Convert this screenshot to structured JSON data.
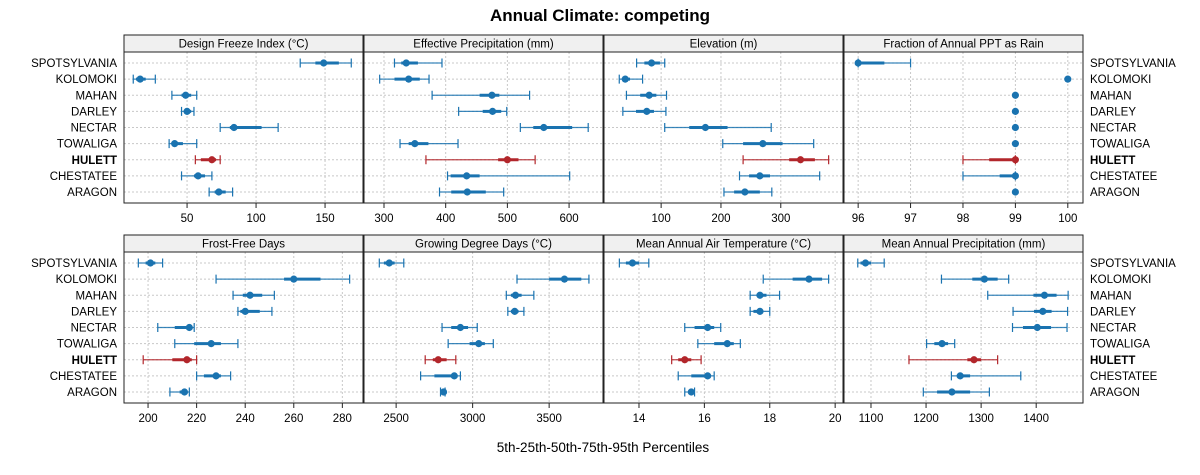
{
  "chart_data": {
    "type": "dot-interval",
    "title": "Annual Climate: competing",
    "xlabel": "5th-25th-50th-75th-95th Percentiles",
    "ylabel": "",
    "grid": true,
    "highlight_site": "HULETT",
    "colors": {
      "default": "#1a73b0",
      "highlight": "#b2262b"
    },
    "sites": [
      "SPOTSYLVANIA",
      "KOLOMOKI",
      "MAHAN",
      "DARLEY",
      "NECTAR",
      "TOWALIGA",
      "HULETT",
      "CHESTATEE",
      "ARAGON"
    ],
    "panels": [
      {
        "name": "Design Freeze Index (°C)",
        "xlim": [
          4.3,
          177.5
        ],
        "ticks": [
          50,
          100,
          150
        ],
        "data": [
          [
            132,
            143,
            149,
            160,
            169
          ],
          [
            11,
            13,
            16,
            20,
            27
          ],
          [
            39,
            46,
            49,
            53,
            57
          ],
          [
            46,
            48,
            50,
            53,
            55
          ],
          [
            74,
            81,
            84,
            104,
            116
          ],
          [
            37,
            40,
            41,
            47,
            57
          ],
          [
            56,
            60,
            68,
            71,
            74
          ],
          [
            46,
            55,
            58,
            63,
            68
          ],
          [
            66,
            70,
            73,
            78,
            83
          ]
        ]
      },
      {
        "name": "Effective Precipitation (mm)",
        "xlim": [
          267.6,
          655
        ],
        "ticks": [
          300,
          400,
          500,
          600
        ],
        "data": [
          [
            317,
            328,
            336,
            355,
            394
          ],
          [
            293,
            317,
            340,
            358,
            373
          ],
          [
            378,
            455,
            475,
            487,
            536
          ],
          [
            421,
            460,
            476,
            490,
            499
          ],
          [
            521,
            542,
            559,
            605,
            631
          ],
          [
            326,
            340,
            350,
            372,
            420
          ],
          [
            368,
            485,
            500,
            518,
            545
          ],
          [
            403,
            408,
            434,
            455,
            601
          ],
          [
            390,
            409,
            435,
            465,
            494
          ]
        ]
      },
      {
        "name": "Elevation (m)",
        "xlim": [
          4.5,
          404
        ],
        "ticks": [
          100,
          200,
          300
        ],
        "data": [
          [
            59,
            72,
            84,
            98,
            106
          ],
          [
            30,
            36,
            40,
            48,
            69
          ],
          [
            42,
            65,
            80,
            92,
            109
          ],
          [
            36,
            58,
            76,
            88,
            108
          ],
          [
            106,
            147,
            174,
            211,
            284
          ],
          [
            203,
            237,
            270,
            303,
            355
          ],
          [
            237,
            314,
            333,
            357,
            380
          ],
          [
            231,
            247,
            265,
            282,
            365
          ],
          [
            205,
            222,
            240,
            265,
            285
          ]
        ]
      },
      {
        "name": "Fraction of Annual PPT as Rain",
        "xlim": [
          95.73,
          100.29
        ],
        "ticks": [
          96,
          97,
          98,
          99,
          100
        ],
        "data": [
          [
            96,
            96,
            96,
            96.5,
            97
          ],
          [
            100,
            100,
            100,
            100,
            100
          ],
          [
            99,
            99,
            99,
            99,
            99
          ],
          [
            99,
            99,
            99,
            99,
            99
          ],
          [
            99,
            99,
            99,
            99,
            99
          ],
          [
            99,
            99,
            99,
            99,
            99
          ],
          [
            98,
            98.5,
            99,
            99,
            99
          ],
          [
            98,
            98.7,
            99,
            99,
            99
          ],
          [
            99,
            99,
            99,
            99,
            99
          ]
        ]
      },
      {
        "name": "Frost-Free Days",
        "xlim": [
          190.1,
          288.5
        ],
        "ticks": [
          200,
          220,
          240,
          260,
          280
        ],
        "data": [
          [
            196,
            199,
            201,
            203,
            206
          ],
          [
            228,
            256,
            260,
            271,
            283
          ],
          [
            235,
            239,
            242,
            247,
            252
          ],
          [
            237,
            238,
            240,
            246,
            251
          ],
          [
            204,
            211,
            217,
            218,
            219
          ],
          [
            211,
            219,
            226,
            230,
            237
          ],
          [
            198,
            210,
            216,
            218,
            220
          ],
          [
            220,
            223,
            228,
            230,
            234
          ],
          [
            209,
            213,
            215,
            216,
            217
          ]
        ]
      },
      {
        "name": "Growing Degree Days (°C)",
        "xlim": [
          2290,
          3852
        ],
        "ticks": [
          2500,
          3000,
          3500
        ],
        "data": [
          [
            2390,
            2420,
            2455,
            2490,
            2550
          ],
          [
            3290,
            3500,
            3600,
            3710,
            3760
          ],
          [
            3220,
            3250,
            3280,
            3320,
            3400
          ],
          [
            3230,
            3250,
            3275,
            3300,
            3335
          ],
          [
            2800,
            2860,
            2920,
            2970,
            3030
          ],
          [
            2840,
            2980,
            3040,
            3080,
            3135
          ],
          [
            2690,
            2740,
            2775,
            2830,
            2890
          ],
          [
            2660,
            2750,
            2880,
            2900,
            2920
          ],
          [
            2790,
            2800,
            2810,
            2815,
            2820
          ]
        ]
      },
      {
        "name": "Mean Annual Air Temperature (°C)",
        "xlim": [
          12.93,
          20.24
        ],
        "ticks": [
          14,
          16,
          18,
          20
        ],
        "data": [
          [
            13.4,
            13.6,
            13.8,
            14.0,
            14.3
          ],
          [
            17.8,
            18.7,
            19.2,
            19.6,
            19.8
          ],
          [
            17.4,
            17.6,
            17.7,
            17.9,
            18.3
          ],
          [
            17.4,
            17.5,
            17.7,
            17.8,
            18.0
          ],
          [
            15.4,
            15.7,
            16.1,
            16.3,
            16.5
          ],
          [
            15.8,
            16.3,
            16.7,
            16.9,
            17.1
          ],
          [
            15.0,
            15.2,
            15.4,
            15.6,
            15.9
          ],
          [
            15.2,
            15.6,
            16.1,
            16.2,
            16.3
          ],
          [
            15.4,
            15.5,
            15.6,
            15.6,
            15.7
          ]
        ]
      },
      {
        "name": "Mean Annual Precipitation (mm)",
        "xlim": [
          1051,
          1485
        ],
        "ticks": [
          1100,
          1200,
          1300,
          1400
        ],
        "data": [
          [
            1076,
            1081,
            1090,
            1100,
            1124
          ],
          [
            1228,
            1284,
            1306,
            1330,
            1350
          ],
          [
            1312,
            1395,
            1415,
            1437,
            1458
          ],
          [
            1358,
            1396,
            1412,
            1428,
            1457
          ],
          [
            1357,
            1376,
            1402,
            1427,
            1456
          ],
          [
            1201,
            1215,
            1229,
            1240,
            1252
          ],
          [
            1169,
            1275,
            1287,
            1300,
            1330
          ],
          [
            1246,
            1256,
            1262,
            1280,
            1372
          ],
          [
            1195,
            1220,
            1247,
            1280,
            1315
          ]
        ]
      }
    ]
  }
}
